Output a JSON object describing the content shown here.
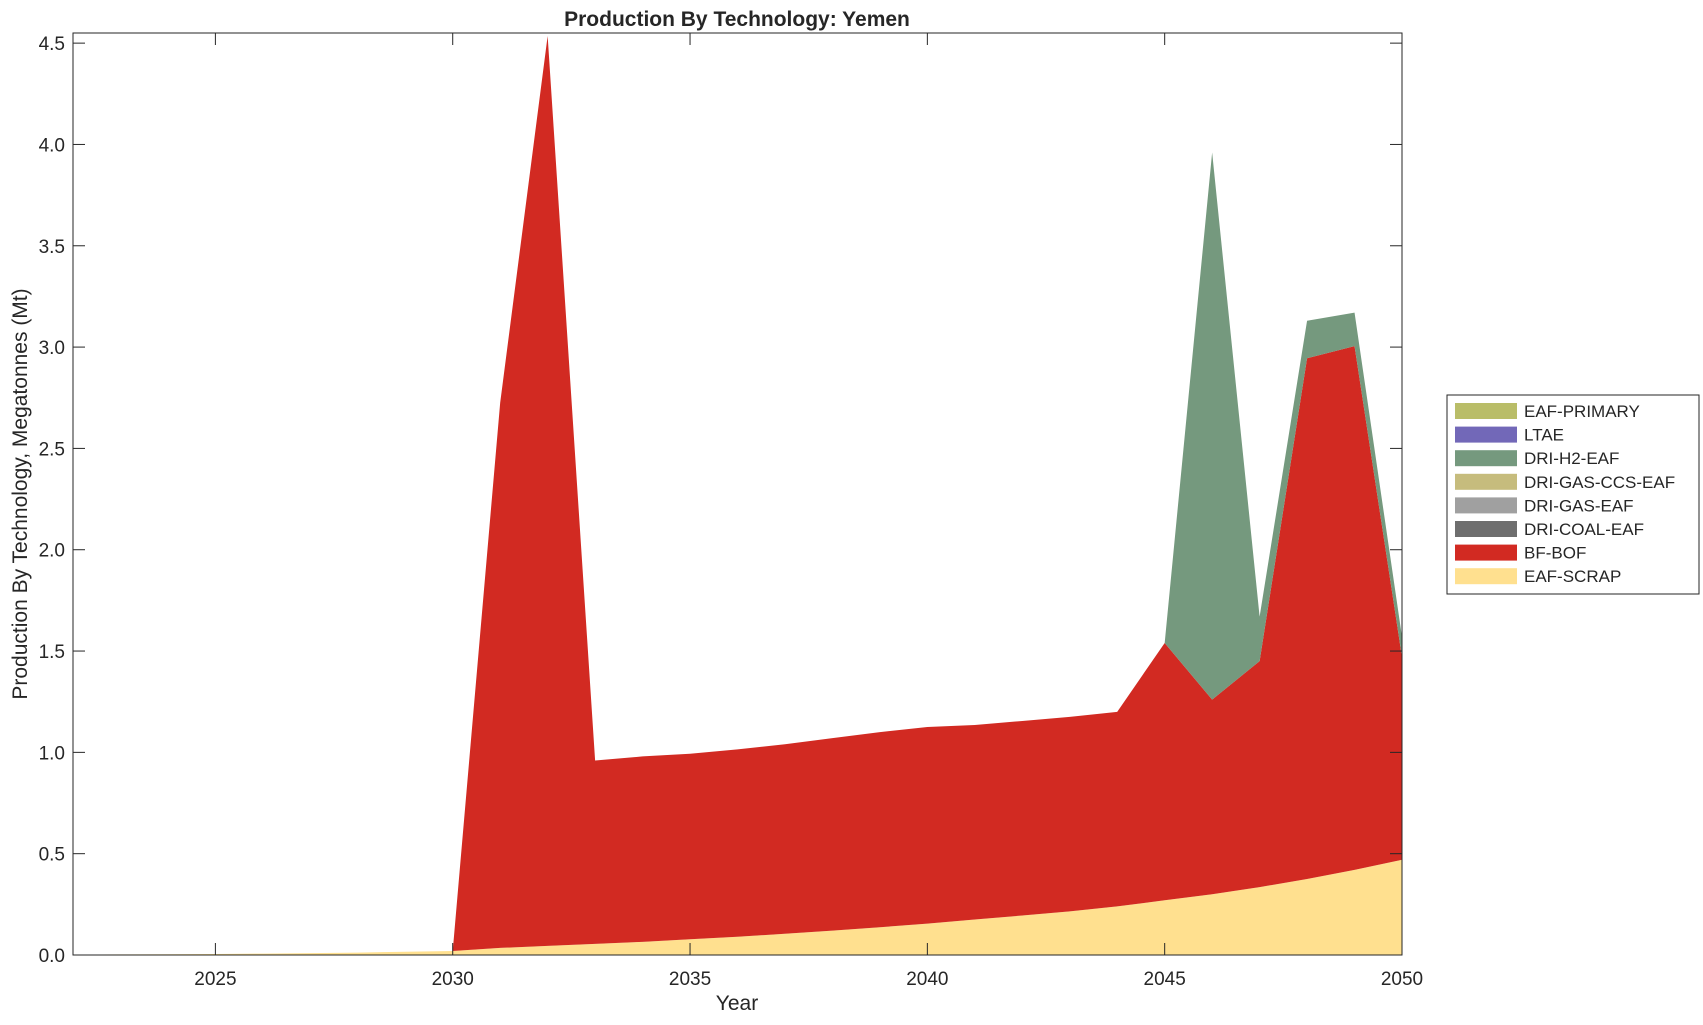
{
  "chart_data": {
    "type": "area",
    "title": "Production By Technology: Yemen",
    "xlabel": "Year",
    "ylabel": "Production By Technology, Megatonnes (Mt)",
    "xlim": [
      2022,
      2050
    ],
    "ylim": [
      0,
      4.55
    ],
    "xticks": [
      2025,
      2030,
      2035,
      2040,
      2045,
      2050
    ],
    "yticks": [
      0,
      0.5,
      1,
      1.5,
      2,
      2.5,
      3,
      3.5,
      4,
      4.5
    ],
    "ytick_labels": [
      "0.0",
      "0.5",
      "1.0",
      "1.5",
      "2.0",
      "2.5",
      "3.0",
      "3.5",
      "4.0",
      "4.5"
    ],
    "grid": false,
    "legend_position": "right",
    "x": [
      2022,
      2023,
      2024,
      2025,
      2026,
      2027,
      2028,
      2029,
      2030,
      2031,
      2032,
      2033,
      2034,
      2035,
      2036,
      2037,
      2038,
      2039,
      2040,
      2041,
      2042,
      2043,
      2044,
      2045,
      2046,
      2047,
      2048,
      2049,
      2050
    ],
    "series": [
      {
        "name": "EAF-SCRAP",
        "color": "#FFE08F",
        "values": [
          0.002,
          0.003,
          0.004,
          0.005,
          0.007,
          0.009,
          0.012,
          0.016,
          0.02,
          0.035,
          0.045,
          0.055,
          0.065,
          0.078,
          0.09,
          0.105,
          0.12,
          0.137,
          0.155,
          0.175,
          0.195,
          0.215,
          0.24,
          0.27,
          0.3,
          0.335,
          0.375,
          0.42,
          0.47
        ]
      },
      {
        "name": "BF-BOF",
        "color": "#D22A22",
        "values": [
          0,
          0,
          0,
          0,
          0,
          0,
          0,
          0,
          0,
          2.69,
          4.49,
          0.905,
          0.915,
          0.915,
          0.925,
          0.935,
          0.95,
          0.963,
          0.97,
          0.96,
          0.96,
          0.96,
          0.96,
          1.27,
          0.96,
          1.115,
          2.57,
          2.585,
          1.0
        ]
      },
      {
        "name": "DRI-COAL-EAF",
        "color": "#6E6E6E",
        "values": [
          0,
          0,
          0,
          0,
          0,
          0,
          0,
          0,
          0,
          0,
          0,
          0,
          0,
          0,
          0,
          0,
          0,
          0,
          0,
          0,
          0,
          0,
          0,
          0,
          0,
          0,
          0,
          0,
          0
        ]
      },
      {
        "name": "DRI-GAS-EAF",
        "color": "#A0A0A0",
        "values": [
          0,
          0,
          0,
          0,
          0,
          0,
          0,
          0,
          0,
          0,
          0,
          0,
          0,
          0,
          0,
          0,
          0,
          0,
          0,
          0,
          0,
          0,
          0,
          0,
          0,
          0,
          0,
          0,
          0
        ]
      },
      {
        "name": "DRI-GAS-CCS-EAF",
        "color": "#C6BC7D",
        "values": [
          0,
          0,
          0,
          0,
          0,
          0,
          0,
          0,
          0,
          0,
          0,
          0,
          0,
          0,
          0,
          0,
          0,
          0,
          0,
          0,
          0,
          0,
          0,
          0,
          0,
          0,
          0,
          0,
          0
        ]
      },
      {
        "name": "DRI-H2-EAF",
        "color": "#75997E",
        "values": [
          0,
          0,
          0,
          0,
          0,
          0,
          0,
          0,
          0,
          0,
          0,
          0,
          0,
          0,
          0,
          0,
          0,
          0,
          0,
          0,
          0,
          0,
          0,
          0,
          2.7,
          0.22,
          0.185,
          0.165,
          0.1
        ]
      },
      {
        "name": "LTAE",
        "color": "#7268B8",
        "values": [
          0,
          0,
          0,
          0,
          0,
          0,
          0,
          0,
          0,
          0,
          0,
          0,
          0,
          0,
          0,
          0,
          0,
          0,
          0,
          0,
          0,
          0,
          0,
          0,
          0,
          0,
          0,
          0,
          0
        ]
      },
      {
        "name": "EAF-PRIMARY",
        "color": "#B9BD68",
        "values": [
          0,
          0,
          0,
          0,
          0,
          0,
          0,
          0,
          0,
          0,
          0,
          0,
          0,
          0,
          0,
          0,
          0,
          0,
          0,
          0,
          0,
          0,
          0,
          0,
          0,
          0,
          0,
          0,
          0
        ]
      }
    ],
    "legend_order": [
      "EAF-PRIMARY",
      "LTAE",
      "DRI-H2-EAF",
      "DRI-GAS-CCS-EAF",
      "DRI-GAS-EAF",
      "DRI-COAL-EAF",
      "BF-BOF",
      "EAF-SCRAP"
    ]
  }
}
